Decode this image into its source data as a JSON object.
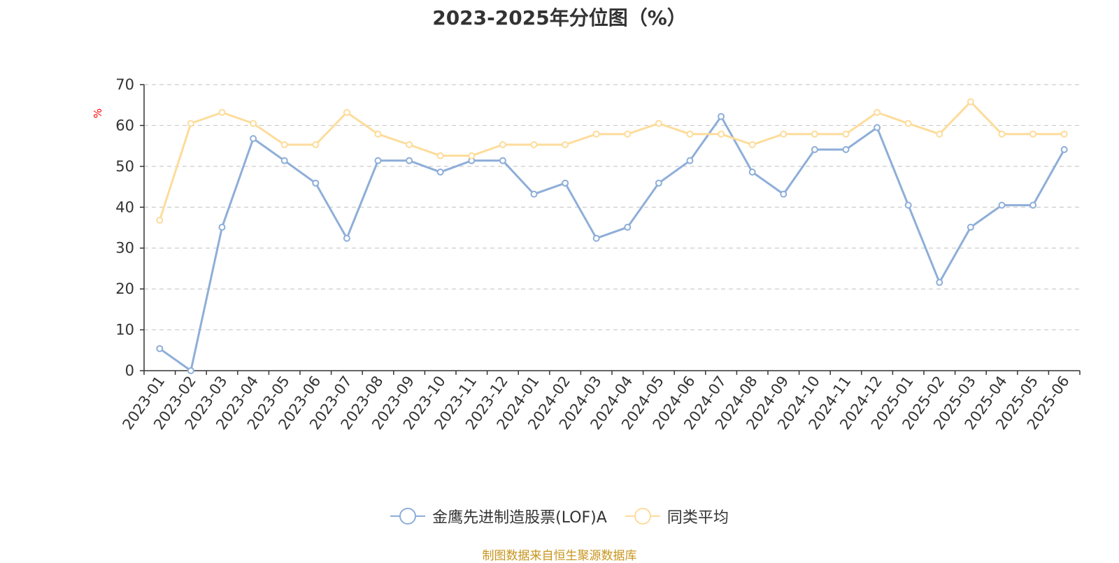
{
  "chart_data": {
    "type": "line",
    "title": "2023-2025年分位图（%）",
    "ylabel": "%",
    "ylim": [
      0,
      70
    ],
    "yticks": [
      0,
      10,
      20,
      30,
      40,
      50,
      60,
      70
    ],
    "grid": true,
    "legend_position": "bottom-center",
    "categories": [
      "2023-01",
      "2023-02",
      "2023-03",
      "2023-04",
      "2023-05",
      "2023-06",
      "2023-07",
      "2023-08",
      "2023-09",
      "2023-10",
      "2023-11",
      "2023-12",
      "2024-01",
      "2024-02",
      "2024-03",
      "2024-04",
      "2024-05",
      "2024-06",
      "2024-07",
      "2024-08",
      "2024-09",
      "2024-10",
      "2024-11",
      "2024-12",
      "2025-01",
      "2025-02",
      "2025-03",
      "2025-04",
      "2025-05",
      "2025-06"
    ],
    "series": [
      {
        "name": "金鹰先进制造股票(LOF)A",
        "color": "#8eaed8",
        "values": [
          5.4,
          0,
          35.1,
          56.8,
          51.4,
          45.9,
          32.4,
          51.4,
          51.4,
          48.6,
          51.4,
          51.4,
          43.2,
          45.9,
          32.4,
          35.1,
          45.9,
          51.4,
          62.2,
          48.6,
          43.2,
          54.1,
          54.1,
          59.5,
          40.5,
          21.6,
          35.1,
          40.5,
          40.5,
          54.1
        ]
      },
      {
        "name": "同类平均",
        "color": "#fddc9b",
        "values": [
          36.8,
          60.5,
          63.2,
          60.5,
          55.3,
          55.3,
          63.2,
          57.9,
          55.3,
          52.6,
          52.6,
          55.3,
          55.3,
          55.3,
          57.9,
          57.9,
          60.5,
          57.9,
          57.9,
          55.3,
          57.9,
          57.9,
          57.9,
          63.2,
          60.5,
          57.9,
          65.8,
          57.9,
          57.9,
          57.9
        ]
      }
    ]
  },
  "source_text": "制图数据来自恒生聚源数据库",
  "colors": {
    "axis": "#333333",
    "grid": "#cccccc",
    "ylabel": "#ff0000",
    "source": "#c8941e"
  }
}
